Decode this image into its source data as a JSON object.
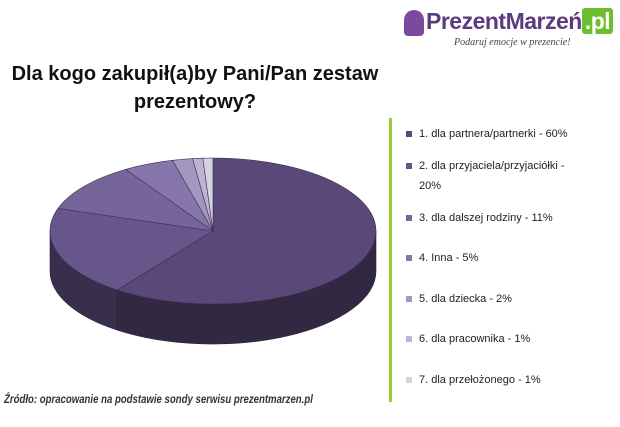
{
  "chart_data": {
    "type": "pie",
    "title": "Dla kogo zakupił(a)by Pani/Pan zestaw prezentowy?",
    "logo_name": "PrezentMarzeń",
    "logo_tld": ".pl",
    "logo_tagline": "Podaruj emocje w prezencie!",
    "source": "Źródło: opracowanie na podstawie sondy serwisu prezentmarzen.pl",
    "categories": [
      "1. dla partnera/partnerki - 60%",
      "2. dla przyjaciela/przyjaciółki - 20%",
      "3. dla dalszej rodziny - 11%",
      "4. Inna - 5%",
      "5. dla dziecka - 2%",
      "6. dla pracownika - 1%",
      "7. dla przełożonego - 1%"
    ],
    "values": [
      60,
      20,
      11,
      5,
      2,
      1,
      1
    ],
    "colors": [
      "#5a4878",
      "#67568a",
      "#76659b",
      "#8676ac",
      "#a297bf",
      "#bcb4d2",
      "#d5d0e2"
    ]
  }
}
